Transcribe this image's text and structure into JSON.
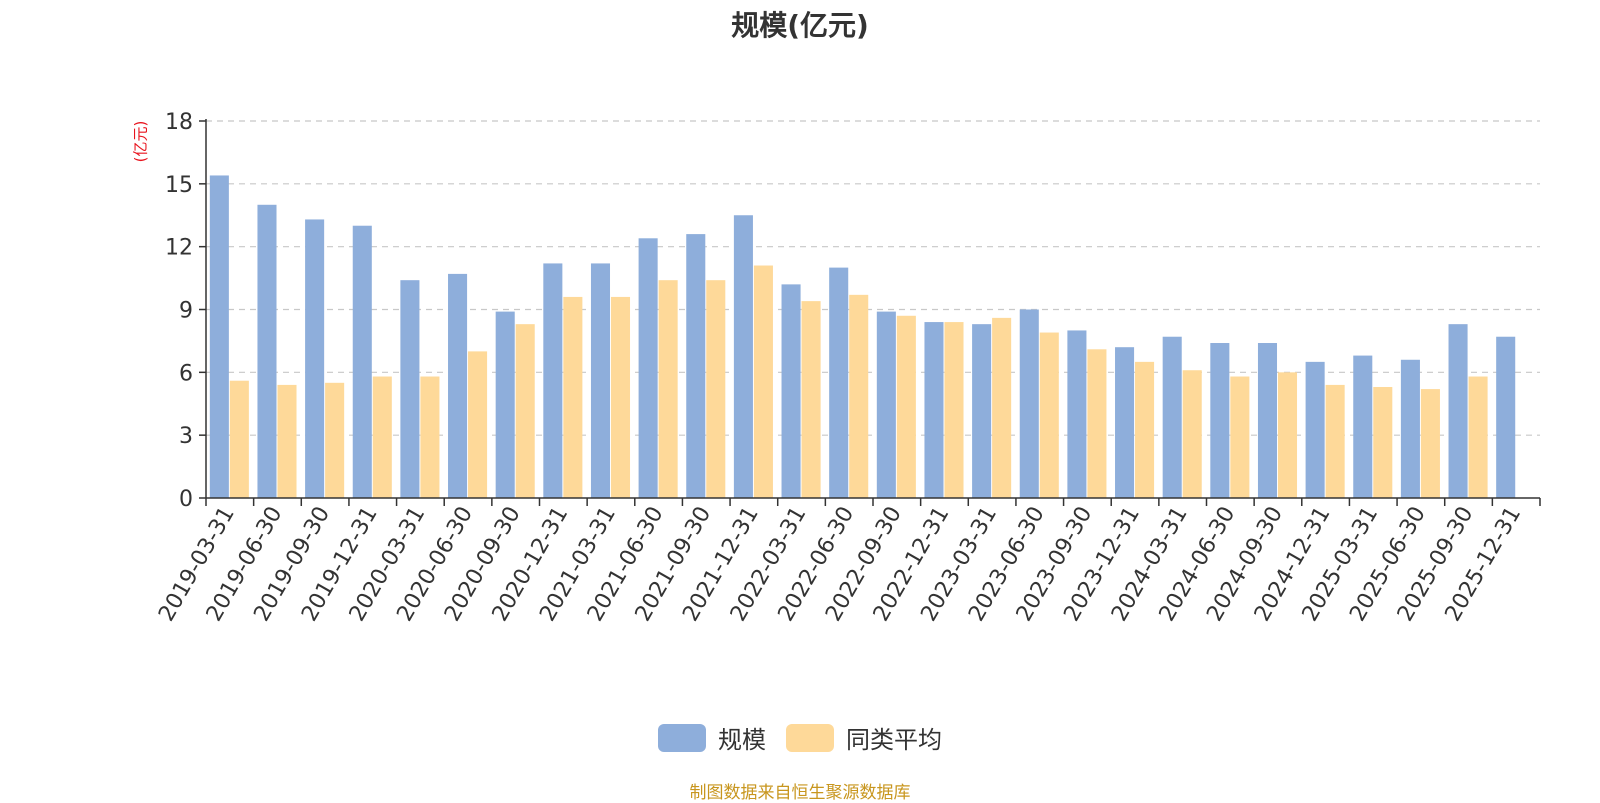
{
  "chart_data": {
    "type": "bar",
    "title": "规模(亿元)",
    "ylabel": "(亿元)",
    "ylim": [
      0,
      18
    ],
    "yticks": [
      0,
      3,
      6,
      9,
      12,
      15,
      18
    ],
    "grid": true,
    "legend_position": "bottom-center",
    "categories": [
      "2019-03-31",
      "2019-06-30",
      "2019-09-30",
      "2019-12-31",
      "2020-03-31",
      "2020-06-30",
      "2020-09-30",
      "2020-12-31",
      "2021-03-31",
      "2021-06-30",
      "2021-09-30",
      "2021-12-31",
      "2022-03-31",
      "2022-06-30",
      "2022-09-30",
      "2022-12-31",
      "2023-03-31",
      "2023-06-30",
      "2023-09-30",
      "2023-12-31",
      "2024-03-31",
      "2024-06-30",
      "2024-09-30",
      "2024-12-31",
      "2025-03-31",
      "2025-06-30",
      "2025-09-30",
      "2025-12-31"
    ],
    "series": [
      {
        "name": "规模",
        "color": "#8eaedb",
        "values": [
          15.4,
          14.0,
          13.3,
          13.0,
          10.4,
          10.7,
          8.9,
          11.2,
          11.2,
          12.4,
          12.6,
          13.5,
          10.2,
          11.0,
          8.9,
          8.4,
          8.3,
          9.0,
          8.0,
          7.2,
          7.7,
          7.4,
          7.4,
          6.5,
          6.8,
          6.6,
          8.3,
          7.7
        ]
      },
      {
        "name": "同类平均",
        "color": "#fed999",
        "values": [
          5.6,
          5.4,
          5.5,
          5.8,
          5.8,
          7.0,
          8.3,
          9.6,
          9.6,
          10.4,
          10.4,
          11.1,
          9.4,
          9.7,
          8.7,
          8.4,
          8.6,
          7.9,
          7.1,
          6.5,
          6.1,
          5.8,
          6.0,
          5.4,
          5.3,
          5.2,
          5.8,
          null
        ]
      }
    ]
  },
  "source_note": "制图数据来自恒生聚源数据库"
}
